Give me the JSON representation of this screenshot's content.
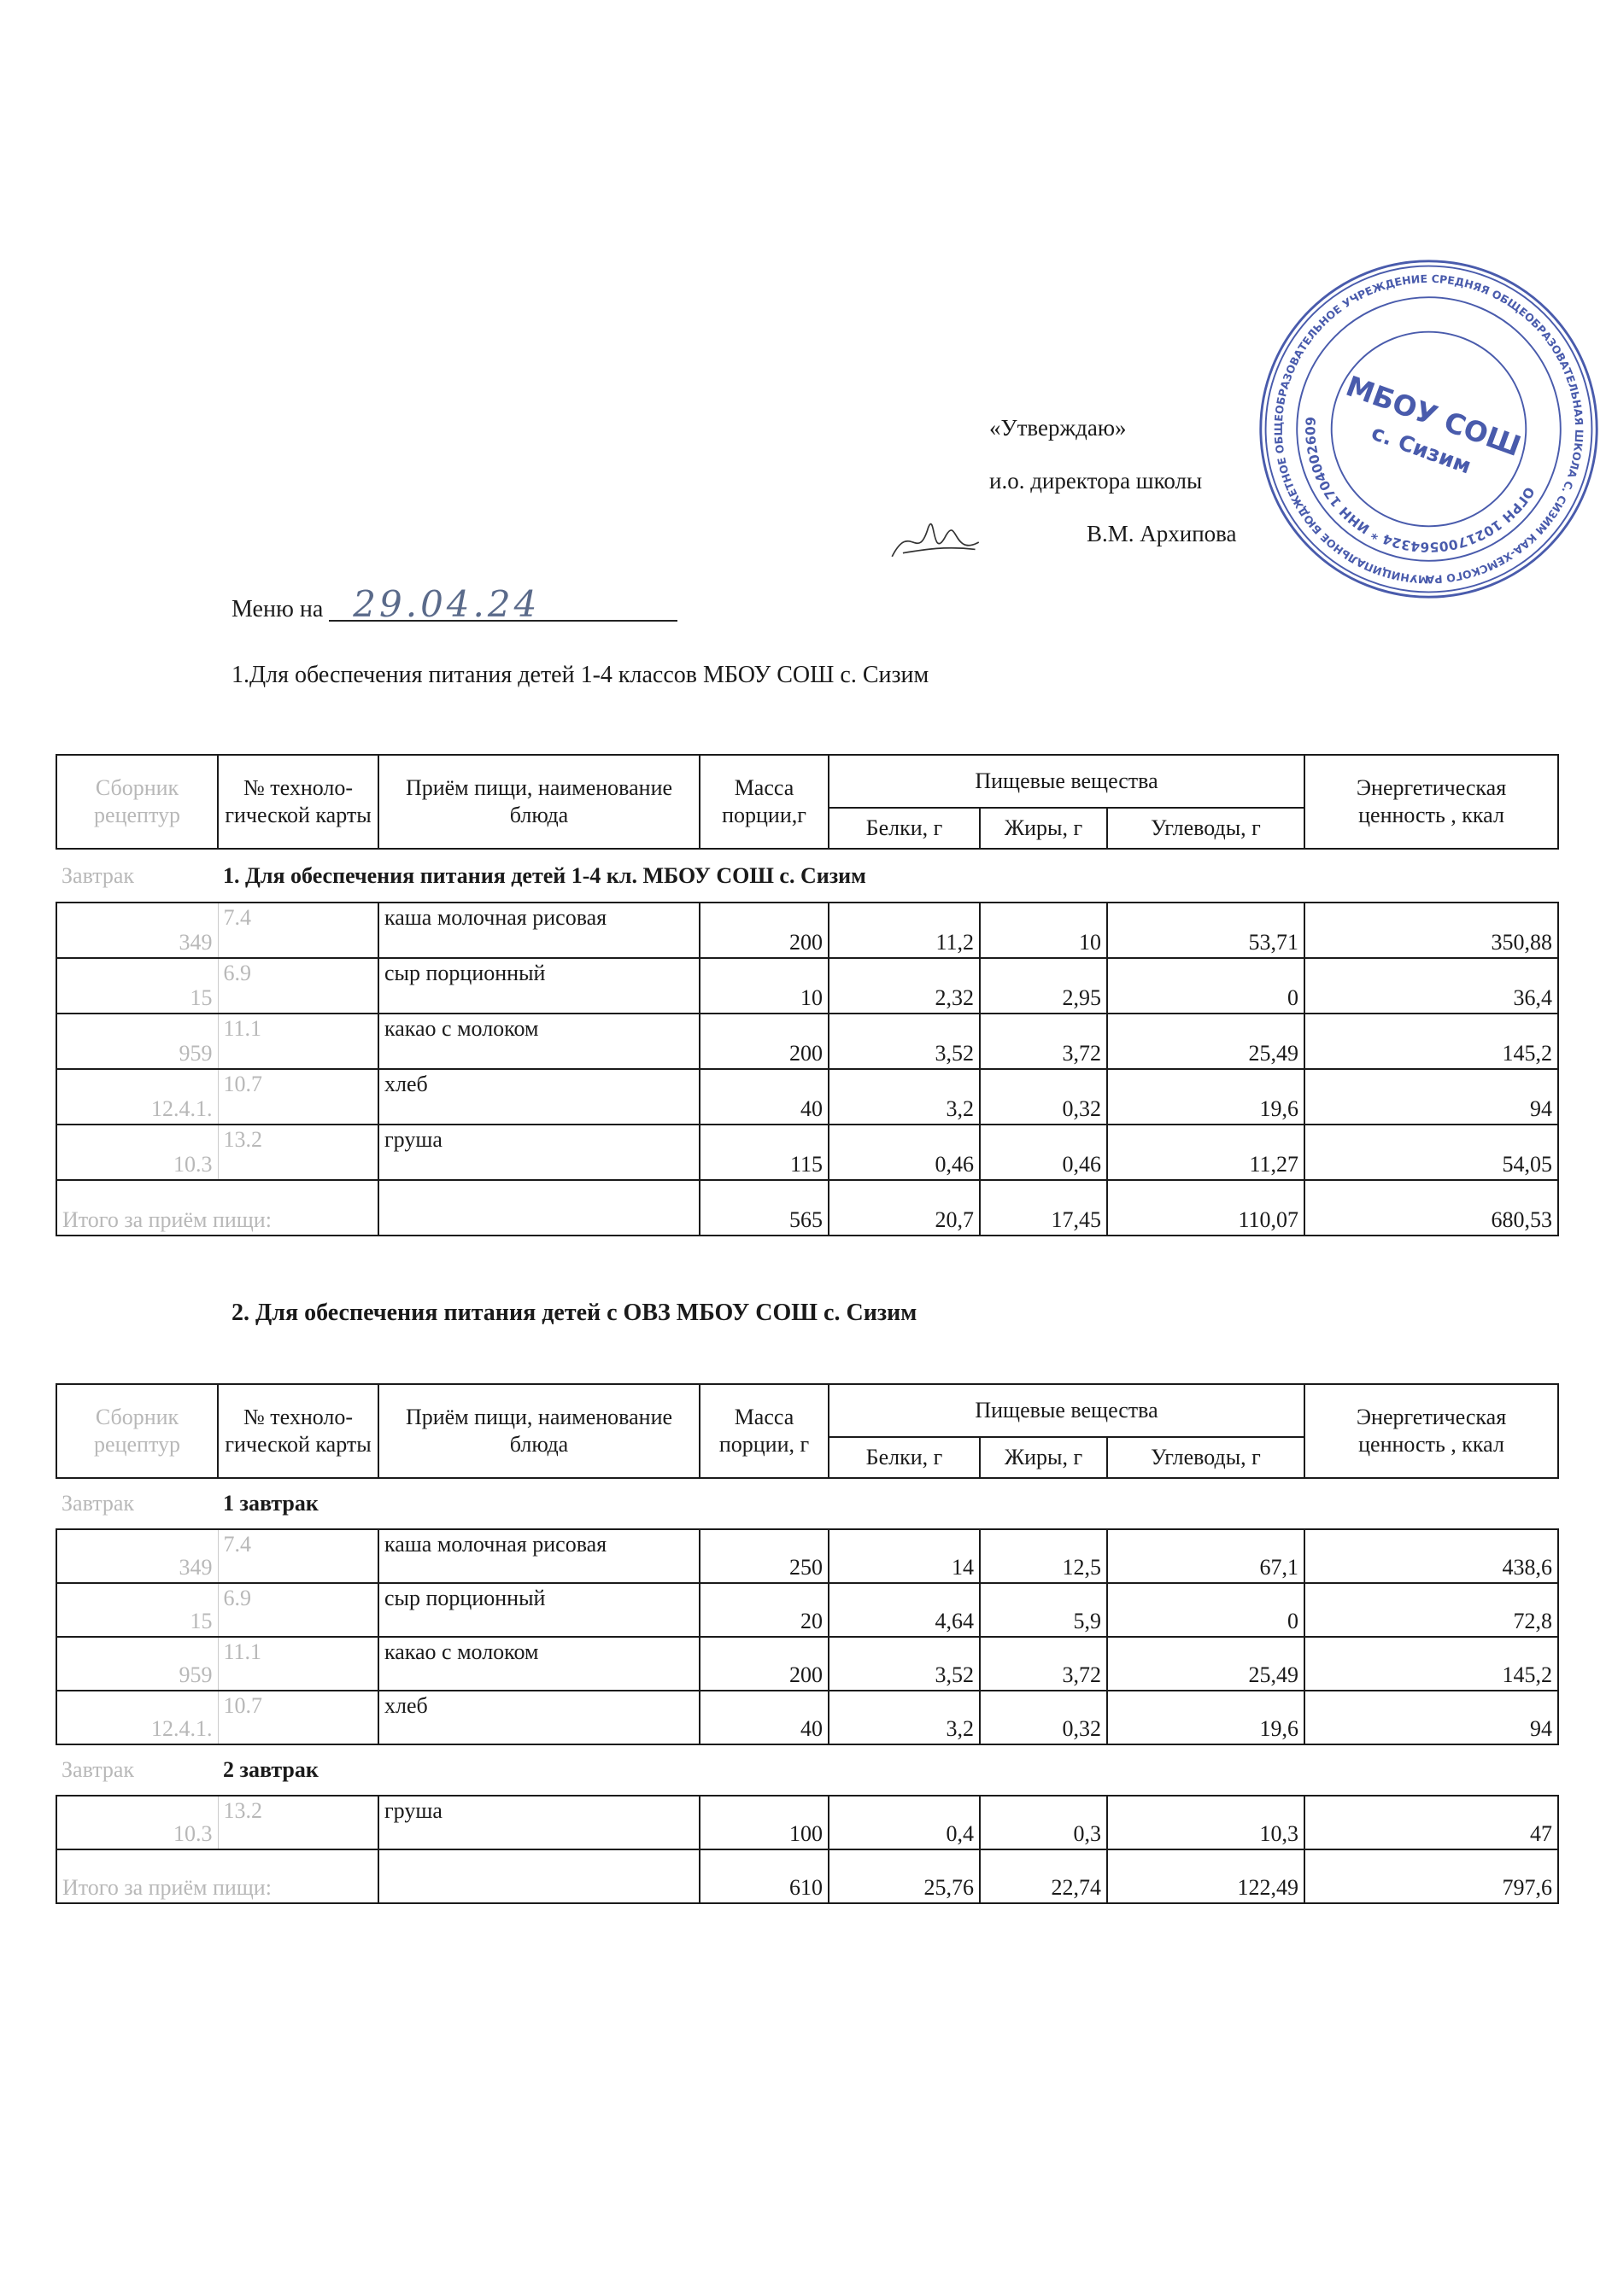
{
  "approval": {
    "line1": "«Утверждаю»",
    "line2": "и.о. директора школы",
    "line3": "В.М. Архипова"
  },
  "stamp": {
    "outer_text": "МУНИЦИПАЛЬНОЕ БЮДЖЕТНОЕ ОБЩЕОБРАЗОВАТЕЛЬНОЕ УЧРЕЖДЕНИЕ СРЕДНЯЯ ОБЩЕОБРАЗОВАТЕЛЬНАЯ ШКОЛА С. СИЗИМ КАА-ХЕМСКОГО РАЙОНА РЕСПУБЛИКИ ТЫВА",
    "inner_text": "ОГРН 1021700564324 * ИНН 1704002609",
    "center_line1": "МБОУ СОШ",
    "center_line2": "с. Сизим",
    "color": "#2a3f9e"
  },
  "menu": {
    "label": "Меню на",
    "date": "29.04.24"
  },
  "section1_title": "1.Для обеспечения питания детей 1-4 классов МБОУ СОШ с. Сизим",
  "section2_title": "2. Для обеспечения питания детей с ОВЗ МБОУ СОШ с. Сизим",
  "headers": {
    "col1": "Сборник рецептур",
    "col2": "№ техноло-гической карты",
    "col3": "Приём пищи, наименование блюда",
    "col4_t1": "Масса порции,г",
    "col4_t2": "Масса порции, г",
    "nutrients": "Пищевые вещества",
    "protein": "Белки, г",
    "fat": "Жиры, г",
    "carbs": "Углеводы, г",
    "energy": "Энергетическая ценность , ккал"
  },
  "table1": {
    "sections": [
      {
        "meal": "Завтрак",
        "title": "1. Для обеспечения питания детей 1-4 кл. МБОУ СОШ с. Сизим",
        "rows": [
          [
            "349",
            "7.4",
            "каша молочная рисовая",
            "200",
            "11,2",
            "10",
            "53,71",
            "350,88"
          ],
          [
            "15",
            "6.9",
            "сыр порционный",
            "10",
            "2,32",
            "2,95",
            "0",
            "36,4"
          ],
          [
            "959",
            "11.1",
            "какао с молоком",
            "200",
            "3,52",
            "3,72",
            "25,49",
            "145,2"
          ],
          [
            "12.4.1.",
            "10.7",
            "хлеб",
            "40",
            "3,2",
            "0,32",
            "19,6",
            "94"
          ],
          [
            "10.3",
            "13.2",
            "груша",
            "115",
            "0,46",
            "0,46",
            "11,27",
            "54,05"
          ]
        ]
      }
    ],
    "total": {
      "label": "Итого за приём пищи:",
      "values": [
        "565",
        "20,7",
        "17,45",
        "110,07",
        "680,53"
      ]
    }
  },
  "table2": {
    "sections": [
      {
        "meal": "Завтрак",
        "title": "1 завтрак",
        "rows": [
          [
            "349",
            "7.4",
            "каша молочная рисовая",
            "250",
            "14",
            "12,5",
            "67,1",
            "438,6"
          ],
          [
            "15",
            "6.9",
            "сыр порционный",
            "20",
            "4,64",
            "5,9",
            "0",
            "72,8"
          ],
          [
            "959",
            "11.1",
            "какао с молоком",
            "200",
            "3,52",
            "3,72",
            "25,49",
            "145,2"
          ],
          [
            "12.4.1.",
            "10.7",
            "хлеб",
            "40",
            "3,2",
            "0,32",
            "19,6",
            "94"
          ]
        ]
      },
      {
        "meal": "Завтрак",
        "title": "2 завтрак",
        "rows": [
          [
            "10.3",
            "13.2",
            "груша",
            "100",
            "0,4",
            "0,3",
            "10,3",
            "47"
          ]
        ]
      }
    ],
    "total": {
      "label": "Итого за приём пищи:",
      "values": [
        "610",
        "25,76",
        "22,74",
        "122,49",
        "797,6"
      ]
    }
  }
}
